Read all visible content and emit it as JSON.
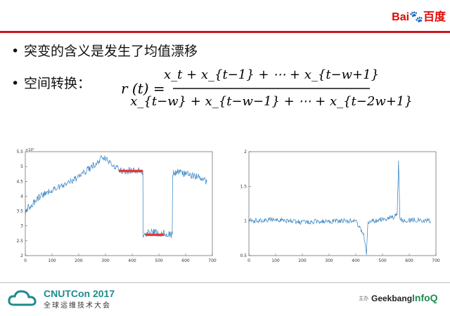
{
  "header": {
    "logo_text": "Bai",
    "logo_paw": "🐾",
    "logo_suffix": "百度"
  },
  "bullets": [
    {
      "dot": "•",
      "text": "突变的含义是发生了均值漂移"
    },
    {
      "dot": "•",
      "text": "空间转换："
    }
  ],
  "formula": {
    "lhs": "r (t) =",
    "numerator": "x_t + x_{t−1} + ⋯ + x_{t−w+1}",
    "denominator": "x_{t−w} + x_{t−w−1} + ⋯ + x_{t−2w+1}"
  },
  "chart_data": [
    {
      "type": "line",
      "title": "",
      "xlabel": "",
      "ylabel": "",
      "y_exponent": "×10⁵",
      "xlim": [
        0,
        700
      ],
      "ylim": [
        2,
        5.5
      ],
      "xticks": [
        0,
        100,
        200,
        300,
        400,
        500,
        600,
        700
      ],
      "yticks": [
        2,
        2.5,
        3,
        3.5,
        4,
        4.5,
        5,
        5.5
      ],
      "series": [
        {
          "x": [
            0,
            50,
            100,
            150,
            200,
            250,
            290,
            300,
            330,
            360,
            400,
            440,
            441,
            470,
            500,
            530,
            540,
            550,
            551,
            580,
            620,
            660,
            680
          ],
          "values": [
            3.5,
            3.95,
            4.2,
            4.4,
            4.65,
            5.0,
            5.35,
            5.25,
            5.05,
            4.85,
            4.85,
            4.85,
            2.7,
            2.8,
            2.75,
            2.75,
            2.7,
            2.7,
            4.8,
            4.8,
            4.7,
            4.6,
            4.5
          ]
        }
      ],
      "annotations": [
        {
          "type": "mean-segment",
          "x": [
            350,
            440
          ],
          "y": 4.85,
          "color": "#e53935"
        },
        {
          "type": "mean-segment",
          "x": [
            450,
            520
          ],
          "y": 2.7,
          "color": "#e53935"
        }
      ]
    },
    {
      "type": "line",
      "title": "",
      "xlabel": "",
      "ylabel": "",
      "xlim": [
        0,
        700
      ],
      "ylim": [
        0.5,
        2
      ],
      "xticks": [
        0,
        100,
        200,
        300,
        400,
        500,
        600,
        700
      ],
      "yticks": [
        0.5,
        1,
        1.5,
        2
      ],
      "series": [
        {
          "x": [
            0,
            100,
            200,
            300,
            400,
            430,
            440,
            445,
            460,
            500,
            540,
            555,
            560,
            565,
            580,
            620,
            680
          ],
          "values": [
            1.0,
            1.02,
            0.98,
            1.0,
            1.0,
            0.8,
            0.52,
            0.95,
            1.0,
            1.02,
            1.05,
            1.1,
            1.85,
            1.05,
            1.0,
            1.02,
            1.0
          ]
        }
      ]
    }
  ],
  "footer": {
    "cn_title": "CNUTCon 2017",
    "cn_sub": "全球运维技术大会",
    "small": "主办",
    "geek": "Geekbang",
    "infoq": "InfoQ"
  },
  "colors": {
    "accent_red": "#c8161d",
    "series_blue": "#2f7fc1",
    "mean_red": "#e53935"
  }
}
